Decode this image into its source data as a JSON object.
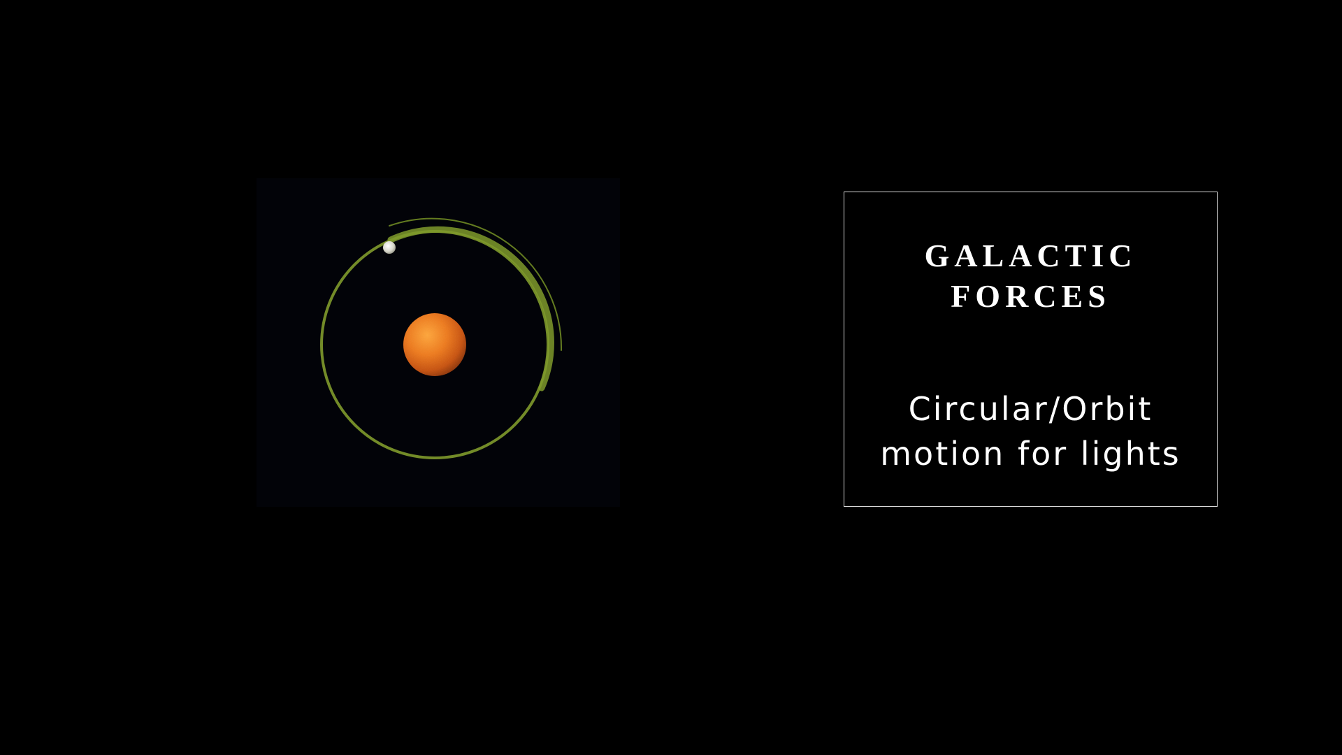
{
  "slide": {
    "title_lines": [
      "GALACTIC",
      "FORCES"
    ],
    "subtitle_lines": [
      "Circular/Orbit",
      "motion for lights"
    ]
  },
  "illustration": {
    "central_body": "orange-star",
    "orbiting_body": "white-moon",
    "orbit_path_color": "#7f9a2c",
    "star_color": "#e8701a",
    "background_color": "#020308"
  }
}
